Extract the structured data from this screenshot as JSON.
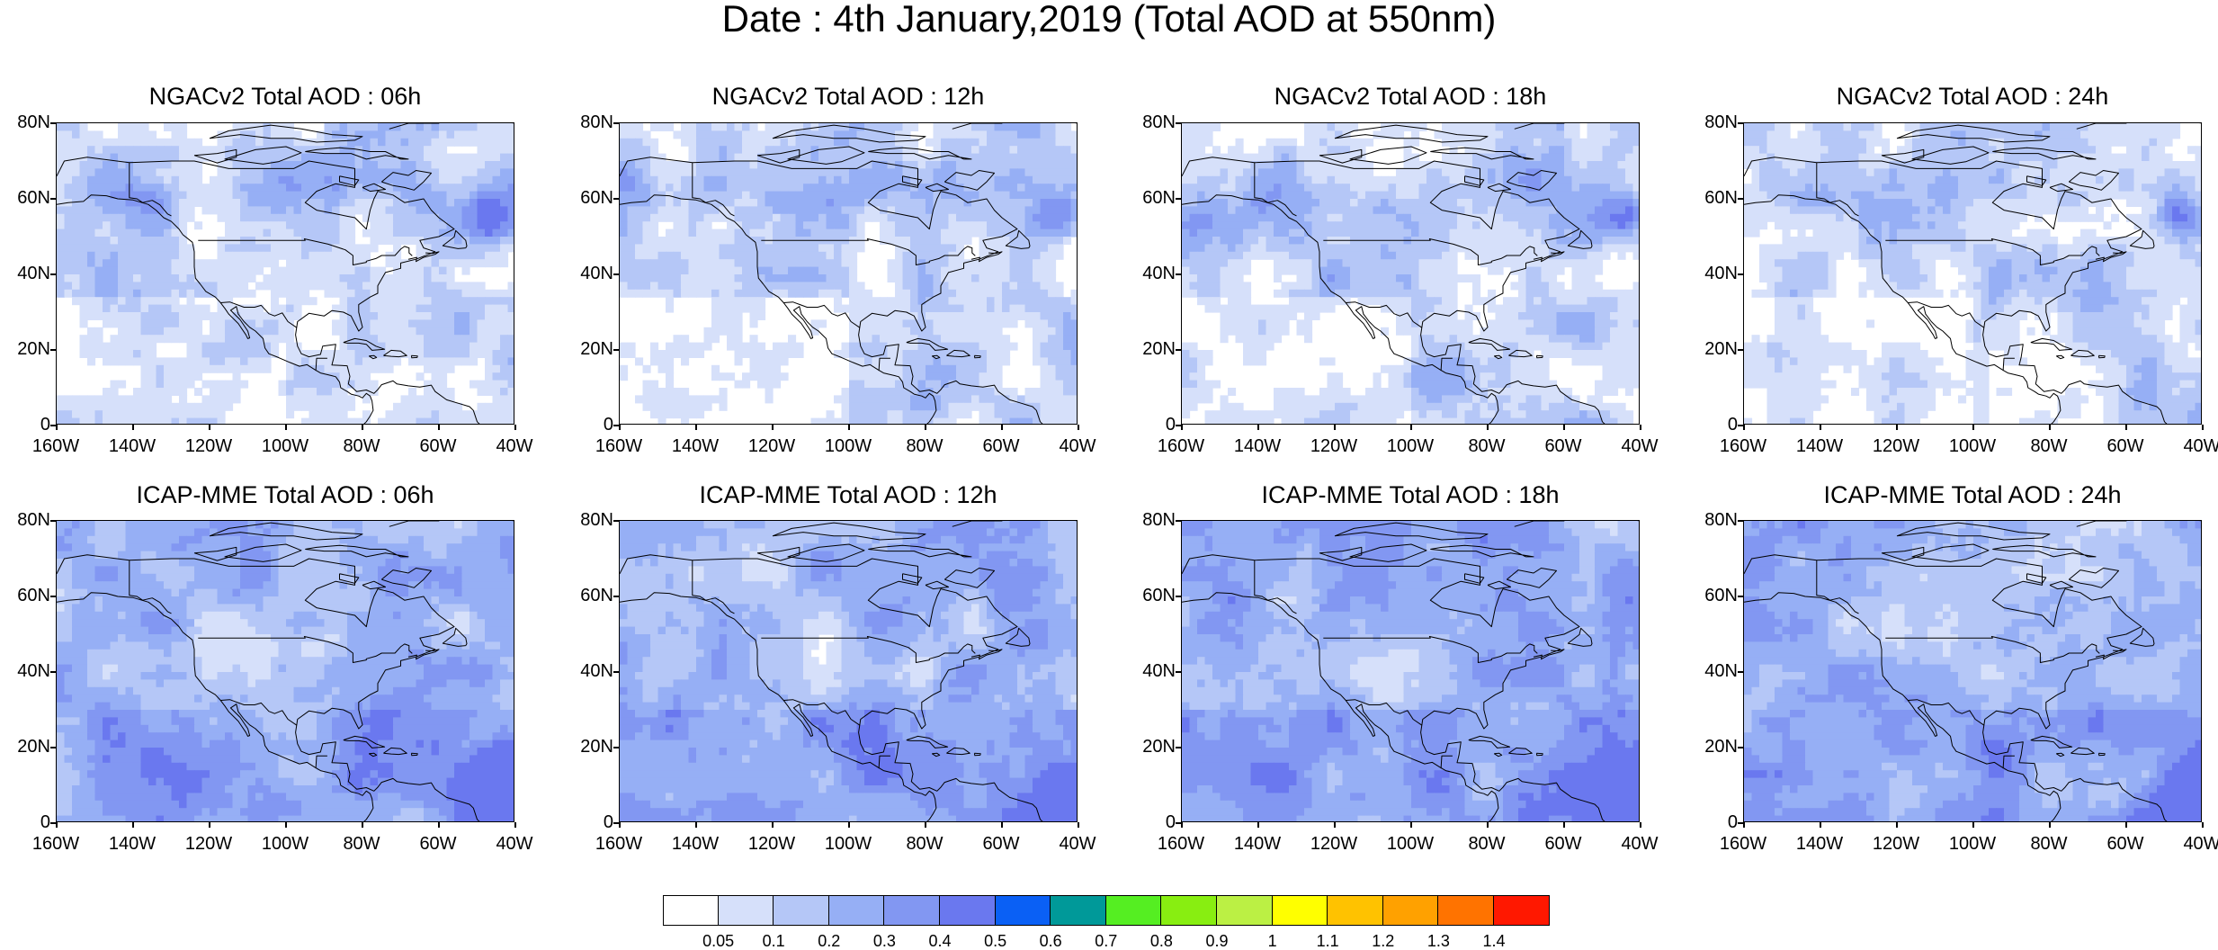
{
  "title": "Date : 4th January,2019 (Total AOD at 550nm)",
  "panels": [
    {
      "title": "NGACv2 Total AOD : 06h",
      "model": "NGACv2",
      "hour": "06h"
    },
    {
      "title": "NGACv2 Total AOD : 12h",
      "model": "NGACv2",
      "hour": "12h"
    },
    {
      "title": "NGACv2 Total AOD : 18h",
      "model": "NGACv2",
      "hour": "18h"
    },
    {
      "title": "NGACv2 Total AOD : 24h",
      "model": "NGACv2",
      "hour": "24h"
    },
    {
      "title": "ICAP-MME Total AOD : 06h",
      "model": "ICAP-MME",
      "hour": "06h"
    },
    {
      "title": "ICAP-MME Total AOD : 12h",
      "model": "ICAP-MME",
      "hour": "12h"
    },
    {
      "title": "ICAP-MME Total AOD : 18h",
      "model": "ICAP-MME",
      "hour": "18h"
    },
    {
      "title": "ICAP-MME Total AOD : 24h",
      "model": "ICAP-MME",
      "hour": "24h"
    }
  ],
  "lat_labels": [
    "80N",
    "60N",
    "40N",
    "20N",
    "0"
  ],
  "lon_labels": [
    "160W",
    "140W",
    "120W",
    "100W",
    "80W",
    "60W",
    "40W"
  ],
  "colorbar": {
    "colors": [
      "#ffffff",
      "#d6e0fa",
      "#b5c7f7",
      "#96aff5",
      "#8297f2",
      "#6a78ef",
      "#0a60f5",
      "#009999",
      "#55ee22",
      "#88ee11",
      "#bbf044",
      "#ffff00",
      "#ffc200",
      "#ffa100",
      "#ff7300",
      "#ff1800"
    ],
    "labels": [
      "0.05",
      "0.1",
      "0.2",
      "0.3",
      "0.4",
      "0.5",
      "0.6",
      "0.7",
      "0.8",
      "0.9",
      "1",
      "1.1",
      "1.2",
      "1.3",
      "1.4"
    ]
  }
}
